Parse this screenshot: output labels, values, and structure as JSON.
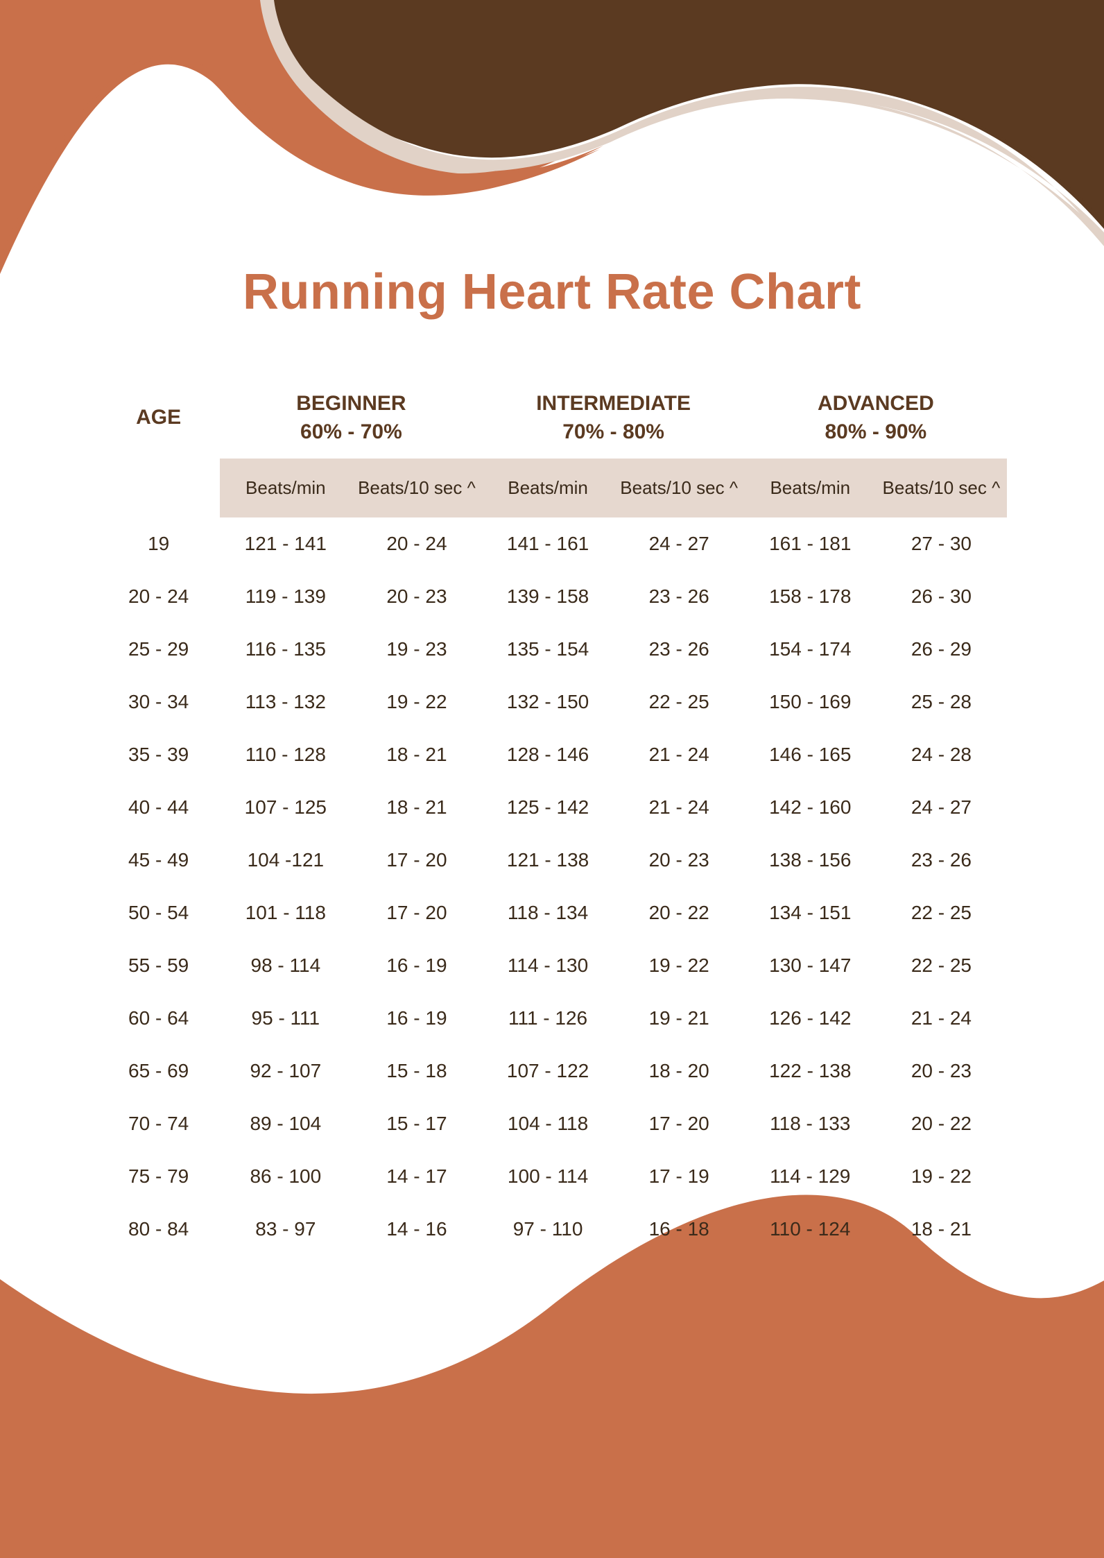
{
  "colors": {
    "terracotta": "#c9704a",
    "brown": "#5b3a21",
    "beige": "#e1d2c7",
    "white": "#ffffff",
    "title": "#c9704a",
    "header_text": "#5b3a21",
    "sub_bg": "#e6d8cf",
    "body_text": "#3a2a1a"
  },
  "title": "Running Heart Rate Chart",
  "headers": {
    "age": "AGE",
    "groups": [
      {
        "label": "BEGINNER",
        "range": "60% - 70%"
      },
      {
        "label": "INTERMEDIATE",
        "range": "70% - 80%"
      },
      {
        "label": "ADVANCED",
        "range": "80% - 90%"
      }
    ],
    "sub": {
      "bpm": "Beats/min",
      "b10": "Beats/10 sec ^"
    }
  },
  "rows": [
    {
      "age": "19",
      "c": [
        "121 - 141",
        "20 - 24",
        "141 - 161",
        "24 - 27",
        "161 - 181",
        "27 - 30"
      ]
    },
    {
      "age": "20 - 24",
      "c": [
        "119 - 139",
        "20 - 23",
        "139 - 158",
        "23 - 26",
        "158 - 178",
        "26 - 30"
      ]
    },
    {
      "age": "25 - 29",
      "c": [
        "116 - 135",
        "19 - 23",
        "135 - 154",
        "23 - 26",
        "154 - 174",
        "26 - 29"
      ]
    },
    {
      "age": "30 - 34",
      "c": [
        "113 - 132",
        "19 - 22",
        "132 - 150",
        "22 - 25",
        "150 - 169",
        "25 - 28"
      ]
    },
    {
      "age": "35 - 39",
      "c": [
        "110 - 128",
        "18 - 21",
        "128 - 146",
        "21 - 24",
        "146 - 165",
        "24 - 28"
      ]
    },
    {
      "age": "40 - 44",
      "c": [
        "107 - 125",
        "18 - 21",
        "125 - 142",
        "21 - 24",
        "142 - 160",
        "24 - 27"
      ]
    },
    {
      "age": "45 - 49",
      "c": [
        "104 -121",
        "17 - 20",
        "121 - 138",
        "20 - 23",
        "138 - 156",
        "23 - 26"
      ]
    },
    {
      "age": "50 - 54",
      "c": [
        "101 - 118",
        "17 - 20",
        "118 - 134",
        "20 - 22",
        "134 - 151",
        "22 - 25"
      ]
    },
    {
      "age": "55 - 59",
      "c": [
        "98 - 114",
        "16 - 19",
        "114 - 130",
        "19 - 22",
        "130 - 147",
        "22 - 25"
      ]
    },
    {
      "age": "60 - 64",
      "c": [
        "95 - 111",
        "16 - 19",
        "111 - 126",
        "19 - 21",
        "126 - 142",
        "21 - 24"
      ]
    },
    {
      "age": "65 - 69",
      "c": [
        "92 - 107",
        "15 - 18",
        "107 - 122",
        "18 - 20",
        "122 - 138",
        "20 - 23"
      ]
    },
    {
      "age": "70 - 74",
      "c": [
        "89 - 104",
        "15 - 17",
        "104 - 118",
        "17 - 20",
        "118 - 133",
        "20 - 22"
      ]
    },
    {
      "age": "75 - 79",
      "c": [
        "86 - 100",
        "14 - 17",
        "100 - 114",
        "17 - 19",
        "114 - 129",
        "19 - 22"
      ]
    },
    {
      "age": "80 - 84",
      "c": [
        "83 - 97",
        "14 - 16",
        "97 - 110",
        "16 - 18",
        "110 - 124",
        "18 - 21"
      ]
    }
  ]
}
